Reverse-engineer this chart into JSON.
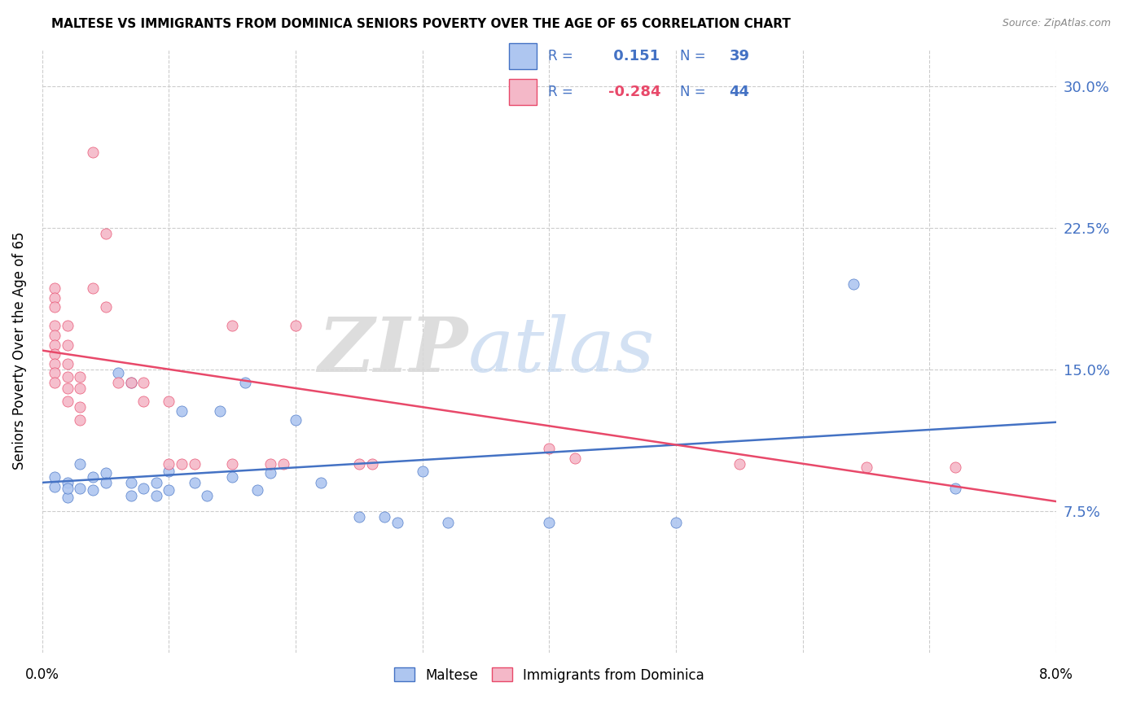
{
  "title": "MALTESE VS IMMIGRANTS FROM DOMINICA SENIORS POVERTY OVER THE AGE OF 65 CORRELATION CHART",
  "source": "Source: ZipAtlas.com",
  "ylabel": "Seniors Poverty Over the Age of 65",
  "ytick_labels": [
    "7.5%",
    "15.0%",
    "22.5%",
    "30.0%"
  ],
  "ytick_values": [
    0.075,
    0.15,
    0.225,
    0.3
  ],
  "xlim": [
    0.0,
    0.08
  ],
  "ylim": [
    0.0,
    0.32
  ],
  "r_maltese": 0.151,
  "n_maltese": 39,
  "r_dominica": -0.284,
  "n_dominica": 44,
  "color_maltese": "#aec6f0",
  "color_dominica": "#f4b8c8",
  "line_color_maltese": "#4472c4",
  "line_color_dominica": "#e8496a",
  "legend_color": "#4472c4",
  "watermark_zip": "ZIP",
  "watermark_atlas": "atlas",
  "maltese_line": [
    0.09,
    0.122
  ],
  "dominica_line": [
    0.16,
    0.08
  ],
  "maltese_points": [
    [
      0.001,
      0.093
    ],
    [
      0.001,
      0.088
    ],
    [
      0.002,
      0.082
    ],
    [
      0.002,
      0.09
    ],
    [
      0.002,
      0.087
    ],
    [
      0.003,
      0.1
    ],
    [
      0.003,
      0.087
    ],
    [
      0.004,
      0.093
    ],
    [
      0.004,
      0.086
    ],
    [
      0.005,
      0.095
    ],
    [
      0.005,
      0.09
    ],
    [
      0.006,
      0.148
    ],
    [
      0.007,
      0.143
    ],
    [
      0.007,
      0.083
    ],
    [
      0.007,
      0.09
    ],
    [
      0.008,
      0.087
    ],
    [
      0.009,
      0.09
    ],
    [
      0.009,
      0.083
    ],
    [
      0.01,
      0.086
    ],
    [
      0.01,
      0.096
    ],
    [
      0.011,
      0.128
    ],
    [
      0.012,
      0.09
    ],
    [
      0.013,
      0.083
    ],
    [
      0.014,
      0.128
    ],
    [
      0.015,
      0.093
    ],
    [
      0.016,
      0.143
    ],
    [
      0.017,
      0.086
    ],
    [
      0.018,
      0.095
    ],
    [
      0.02,
      0.123
    ],
    [
      0.022,
      0.09
    ],
    [
      0.025,
      0.072
    ],
    [
      0.027,
      0.072
    ],
    [
      0.028,
      0.069
    ],
    [
      0.03,
      0.096
    ],
    [
      0.032,
      0.069
    ],
    [
      0.04,
      0.069
    ],
    [
      0.05,
      0.069
    ],
    [
      0.064,
      0.195
    ],
    [
      0.072,
      0.087
    ]
  ],
  "dominica_points": [
    [
      0.001,
      0.193
    ],
    [
      0.001,
      0.188
    ],
    [
      0.001,
      0.183
    ],
    [
      0.001,
      0.173
    ],
    [
      0.001,
      0.168
    ],
    [
      0.001,
      0.163
    ],
    [
      0.001,
      0.158
    ],
    [
      0.001,
      0.153
    ],
    [
      0.001,
      0.148
    ],
    [
      0.001,
      0.143
    ],
    [
      0.002,
      0.173
    ],
    [
      0.002,
      0.163
    ],
    [
      0.002,
      0.153
    ],
    [
      0.002,
      0.146
    ],
    [
      0.002,
      0.14
    ],
    [
      0.002,
      0.133
    ],
    [
      0.003,
      0.146
    ],
    [
      0.003,
      0.14
    ],
    [
      0.003,
      0.13
    ],
    [
      0.003,
      0.123
    ],
    [
      0.004,
      0.265
    ],
    [
      0.004,
      0.193
    ],
    [
      0.005,
      0.222
    ],
    [
      0.005,
      0.183
    ],
    [
      0.006,
      0.143
    ],
    [
      0.007,
      0.143
    ],
    [
      0.008,
      0.143
    ],
    [
      0.008,
      0.133
    ],
    [
      0.01,
      0.133
    ],
    [
      0.01,
      0.1
    ],
    [
      0.011,
      0.1
    ],
    [
      0.012,
      0.1
    ],
    [
      0.015,
      0.173
    ],
    [
      0.015,
      0.1
    ],
    [
      0.018,
      0.1
    ],
    [
      0.019,
      0.1
    ],
    [
      0.02,
      0.173
    ],
    [
      0.025,
      0.1
    ],
    [
      0.026,
      0.1
    ],
    [
      0.04,
      0.108
    ],
    [
      0.042,
      0.103
    ],
    [
      0.055,
      0.1
    ],
    [
      0.065,
      0.098
    ],
    [
      0.072,
      0.098
    ]
  ]
}
